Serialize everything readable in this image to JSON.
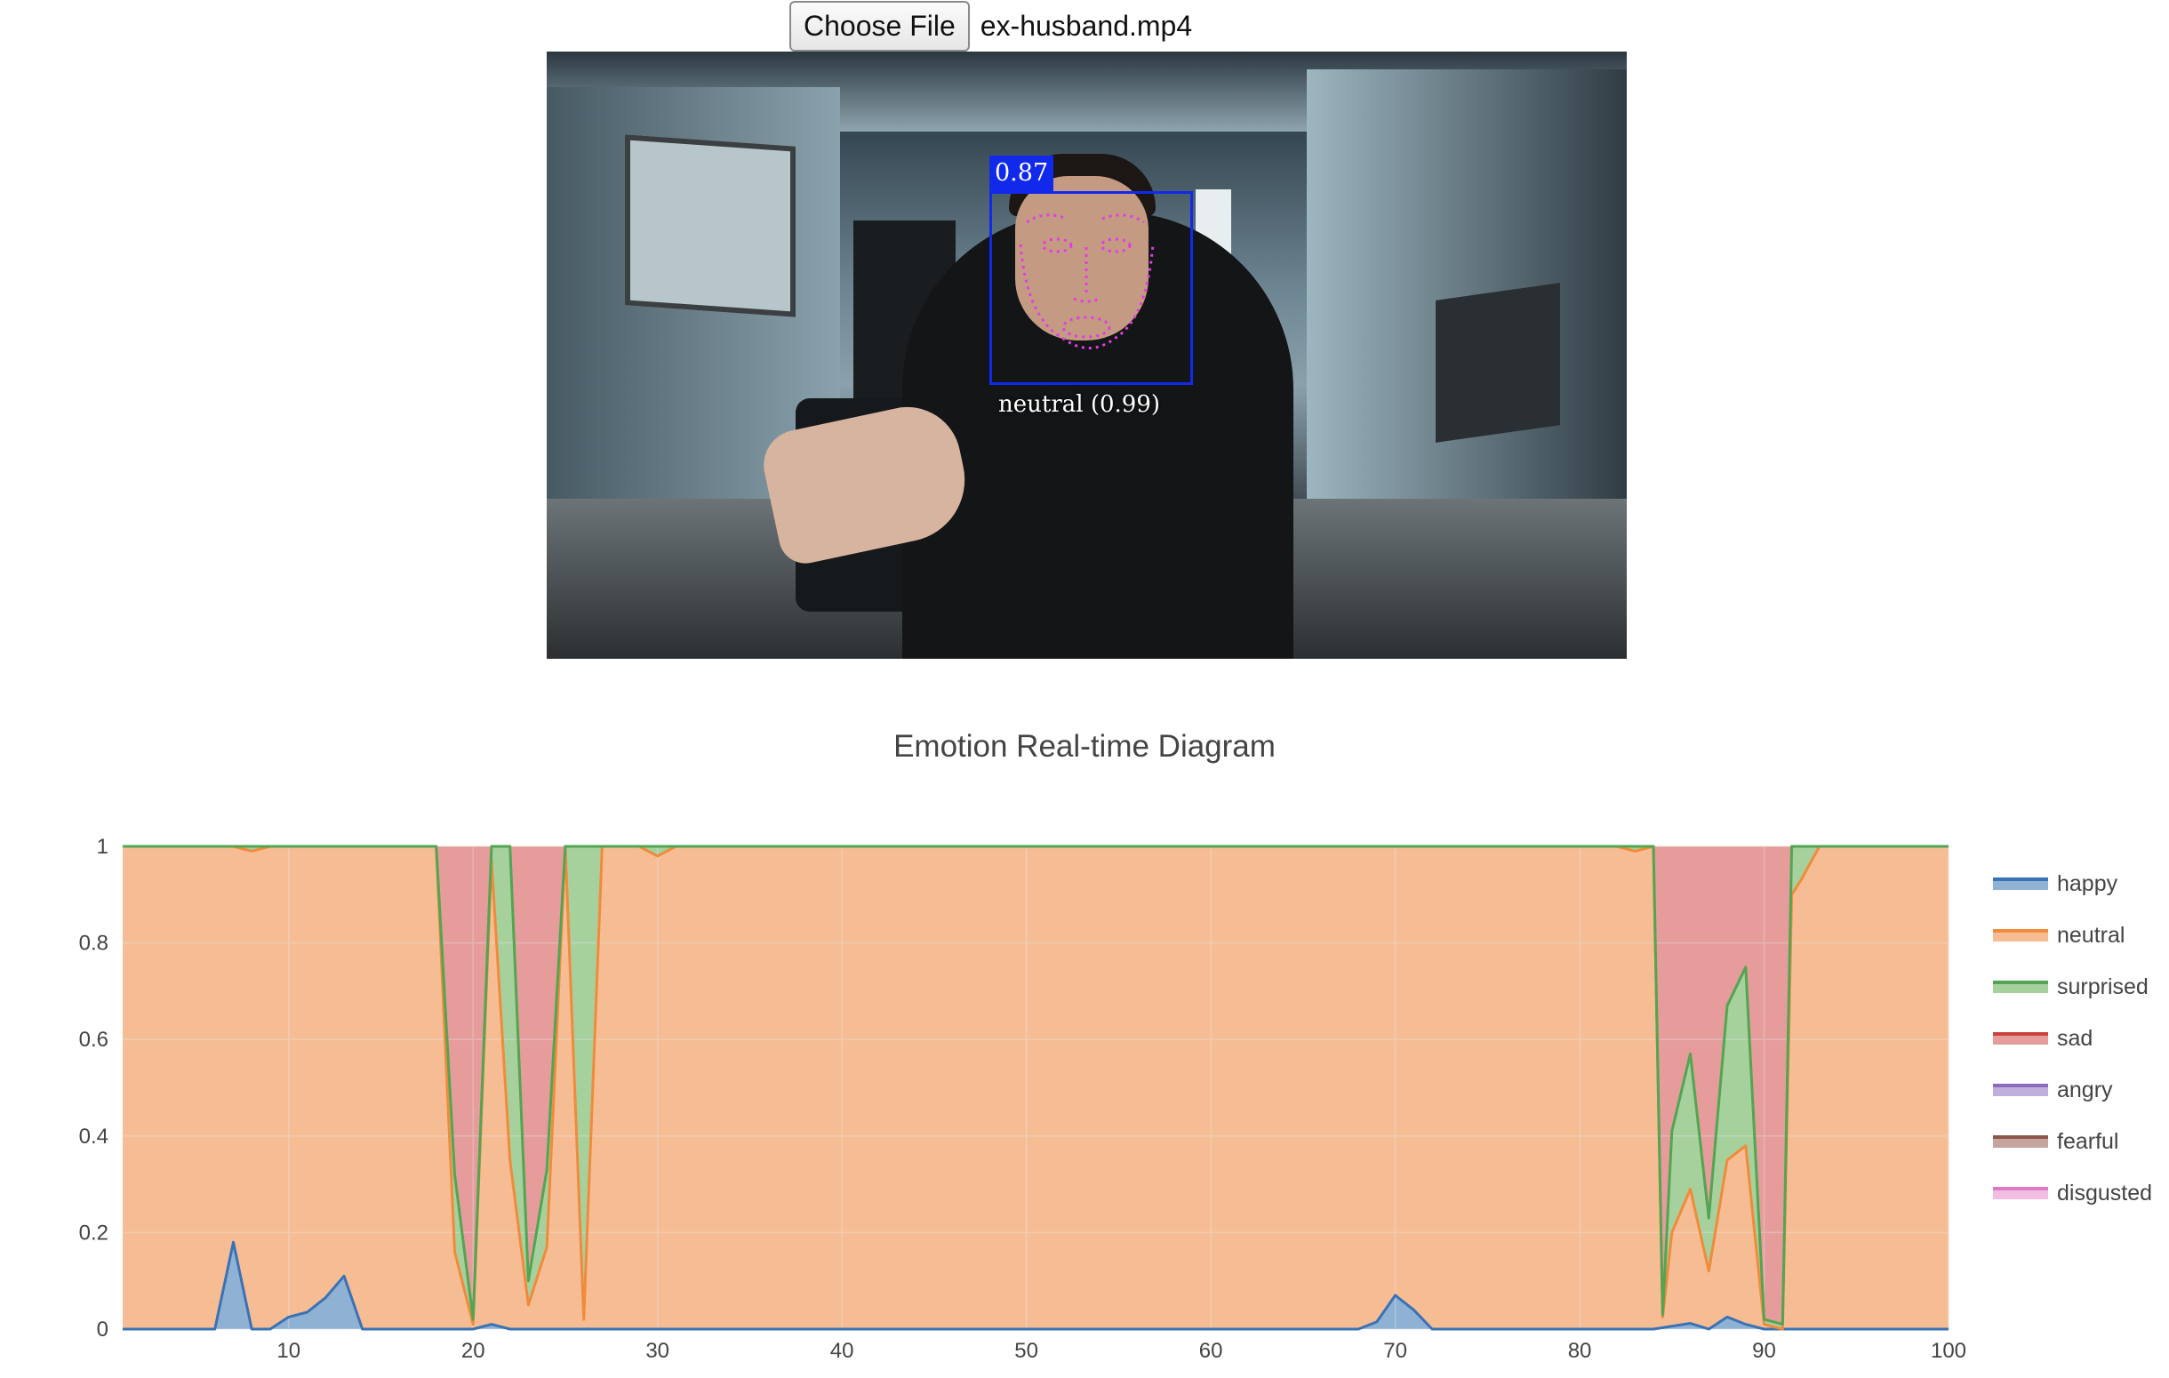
{
  "file_input": {
    "button_label": "Choose File",
    "file_name": "ex-husband.mp4"
  },
  "video": {
    "detection_score": "0.87",
    "expression_label": "neutral (0.99)"
  },
  "chart_data": {
    "type": "area",
    "title": "Emotion Real-time Diagram",
    "xlabel": "",
    "ylabel": "",
    "xlim": [
      1,
      100
    ],
    "ylim": [
      0,
      1
    ],
    "x_ticks": [
      10,
      20,
      30,
      40,
      50,
      60,
      70,
      80,
      90,
      100
    ],
    "y_ticks": [
      0,
      0.2,
      0.4,
      0.6,
      0.8,
      1
    ],
    "y_tick_labels": [
      "0",
      "0.2",
      "0.4",
      "0.6",
      "0.8",
      "1"
    ],
    "stacked": true,
    "grid": true,
    "legend_position": "right",
    "series": [
      {
        "name": "happy",
        "color": "#3a72b5",
        "fill": "#8fb1d4",
        "points": [
          [
            1,
            0
          ],
          [
            6,
            0
          ],
          [
            7,
            0.18
          ],
          [
            8,
            0
          ],
          [
            9,
            0
          ],
          [
            10,
            0.025
          ],
          [
            11,
            0.035
          ],
          [
            12,
            0.065
          ],
          [
            13,
            0.11
          ],
          [
            14,
            0
          ],
          [
            20,
            0
          ],
          [
            21,
            0.01
          ],
          [
            22,
            0
          ],
          [
            30,
            0
          ],
          [
            68,
            0
          ],
          [
            69,
            0.015
          ],
          [
            70,
            0.07
          ],
          [
            71,
            0.04
          ],
          [
            72,
            0
          ],
          [
            84,
            0
          ],
          [
            86,
            0.012
          ],
          [
            87,
            0
          ],
          [
            88,
            0.025
          ],
          [
            89,
            0.01
          ],
          [
            90,
            0
          ],
          [
            100,
            0
          ]
        ]
      },
      {
        "name": "neutral",
        "color": "#f28a3c",
        "fill": "#f6bd94",
        "points": [
          [
            1,
            1
          ],
          [
            7,
            1
          ],
          [
            8,
            0.99
          ],
          [
            9,
            1
          ],
          [
            18,
            1
          ],
          [
            19,
            0.16
          ],
          [
            20,
            0.01
          ],
          [
            21,
            0.97
          ],
          [
            22,
            0.35
          ],
          [
            23,
            0.05
          ],
          [
            24,
            0.17
          ],
          [
            25,
            1
          ],
          [
            26,
            0.02
          ],
          [
            27,
            1
          ],
          [
            29,
            1
          ],
          [
            30,
            0.98
          ],
          [
            31,
            1
          ],
          [
            82,
            1
          ],
          [
            83,
            0.99
          ],
          [
            84,
            1
          ],
          [
            84.5,
            0.025
          ],
          [
            85,
            0.2
          ],
          [
            86,
            0.29
          ],
          [
            87,
            0.12
          ],
          [
            88,
            0.35
          ],
          [
            89,
            0.38
          ],
          [
            90,
            0.01
          ],
          [
            91,
            0
          ],
          [
            91.5,
            0.9
          ],
          [
            92,
            0.93
          ],
          [
            93,
            1
          ],
          [
            100,
            1
          ]
        ]
      },
      {
        "name": "surprised",
        "color": "#52a552",
        "fill": "#a6d19c",
        "points": [
          [
            1,
            1
          ],
          [
            18,
            1
          ],
          [
            19,
            0.32
          ],
          [
            20,
            0.02
          ],
          [
            21,
            1
          ],
          [
            22,
            1
          ],
          [
            23,
            0.1
          ],
          [
            24,
            0.33
          ],
          [
            25,
            1
          ],
          [
            28,
            1
          ],
          [
            30,
            1
          ],
          [
            84,
            1
          ],
          [
            84.5,
            0.03
          ],
          [
            85,
            0.41
          ],
          [
            86,
            0.57
          ],
          [
            87,
            0.23
          ],
          [
            88,
            0.67
          ],
          [
            89,
            0.75
          ],
          [
            90,
            0.02
          ],
          [
            91,
            0.01
          ],
          [
            91.5,
            1
          ],
          [
            92,
            1
          ],
          [
            100,
            1
          ]
        ]
      },
      {
        "name": "sad",
        "color": "#c9423e",
        "fill": "#e59c9a",
        "points": [
          [
            1,
            1
          ],
          [
            100,
            1
          ]
        ]
      },
      {
        "name": "angry",
        "color": "#8c6bbd",
        "fill": "#c0aedd",
        "points": [
          [
            1,
            1
          ],
          [
            100,
            1
          ]
        ]
      },
      {
        "name": "fearful",
        "color": "#8c564b",
        "fill": "#c5a59e",
        "points": [
          [
            1,
            1
          ],
          [
            100,
            1
          ]
        ]
      },
      {
        "name": "disgusted",
        "color": "#e079c4",
        "fill": "#f1bde2",
        "points": [
          [
            1,
            1
          ],
          [
            100,
            1
          ]
        ]
      }
    ]
  }
}
